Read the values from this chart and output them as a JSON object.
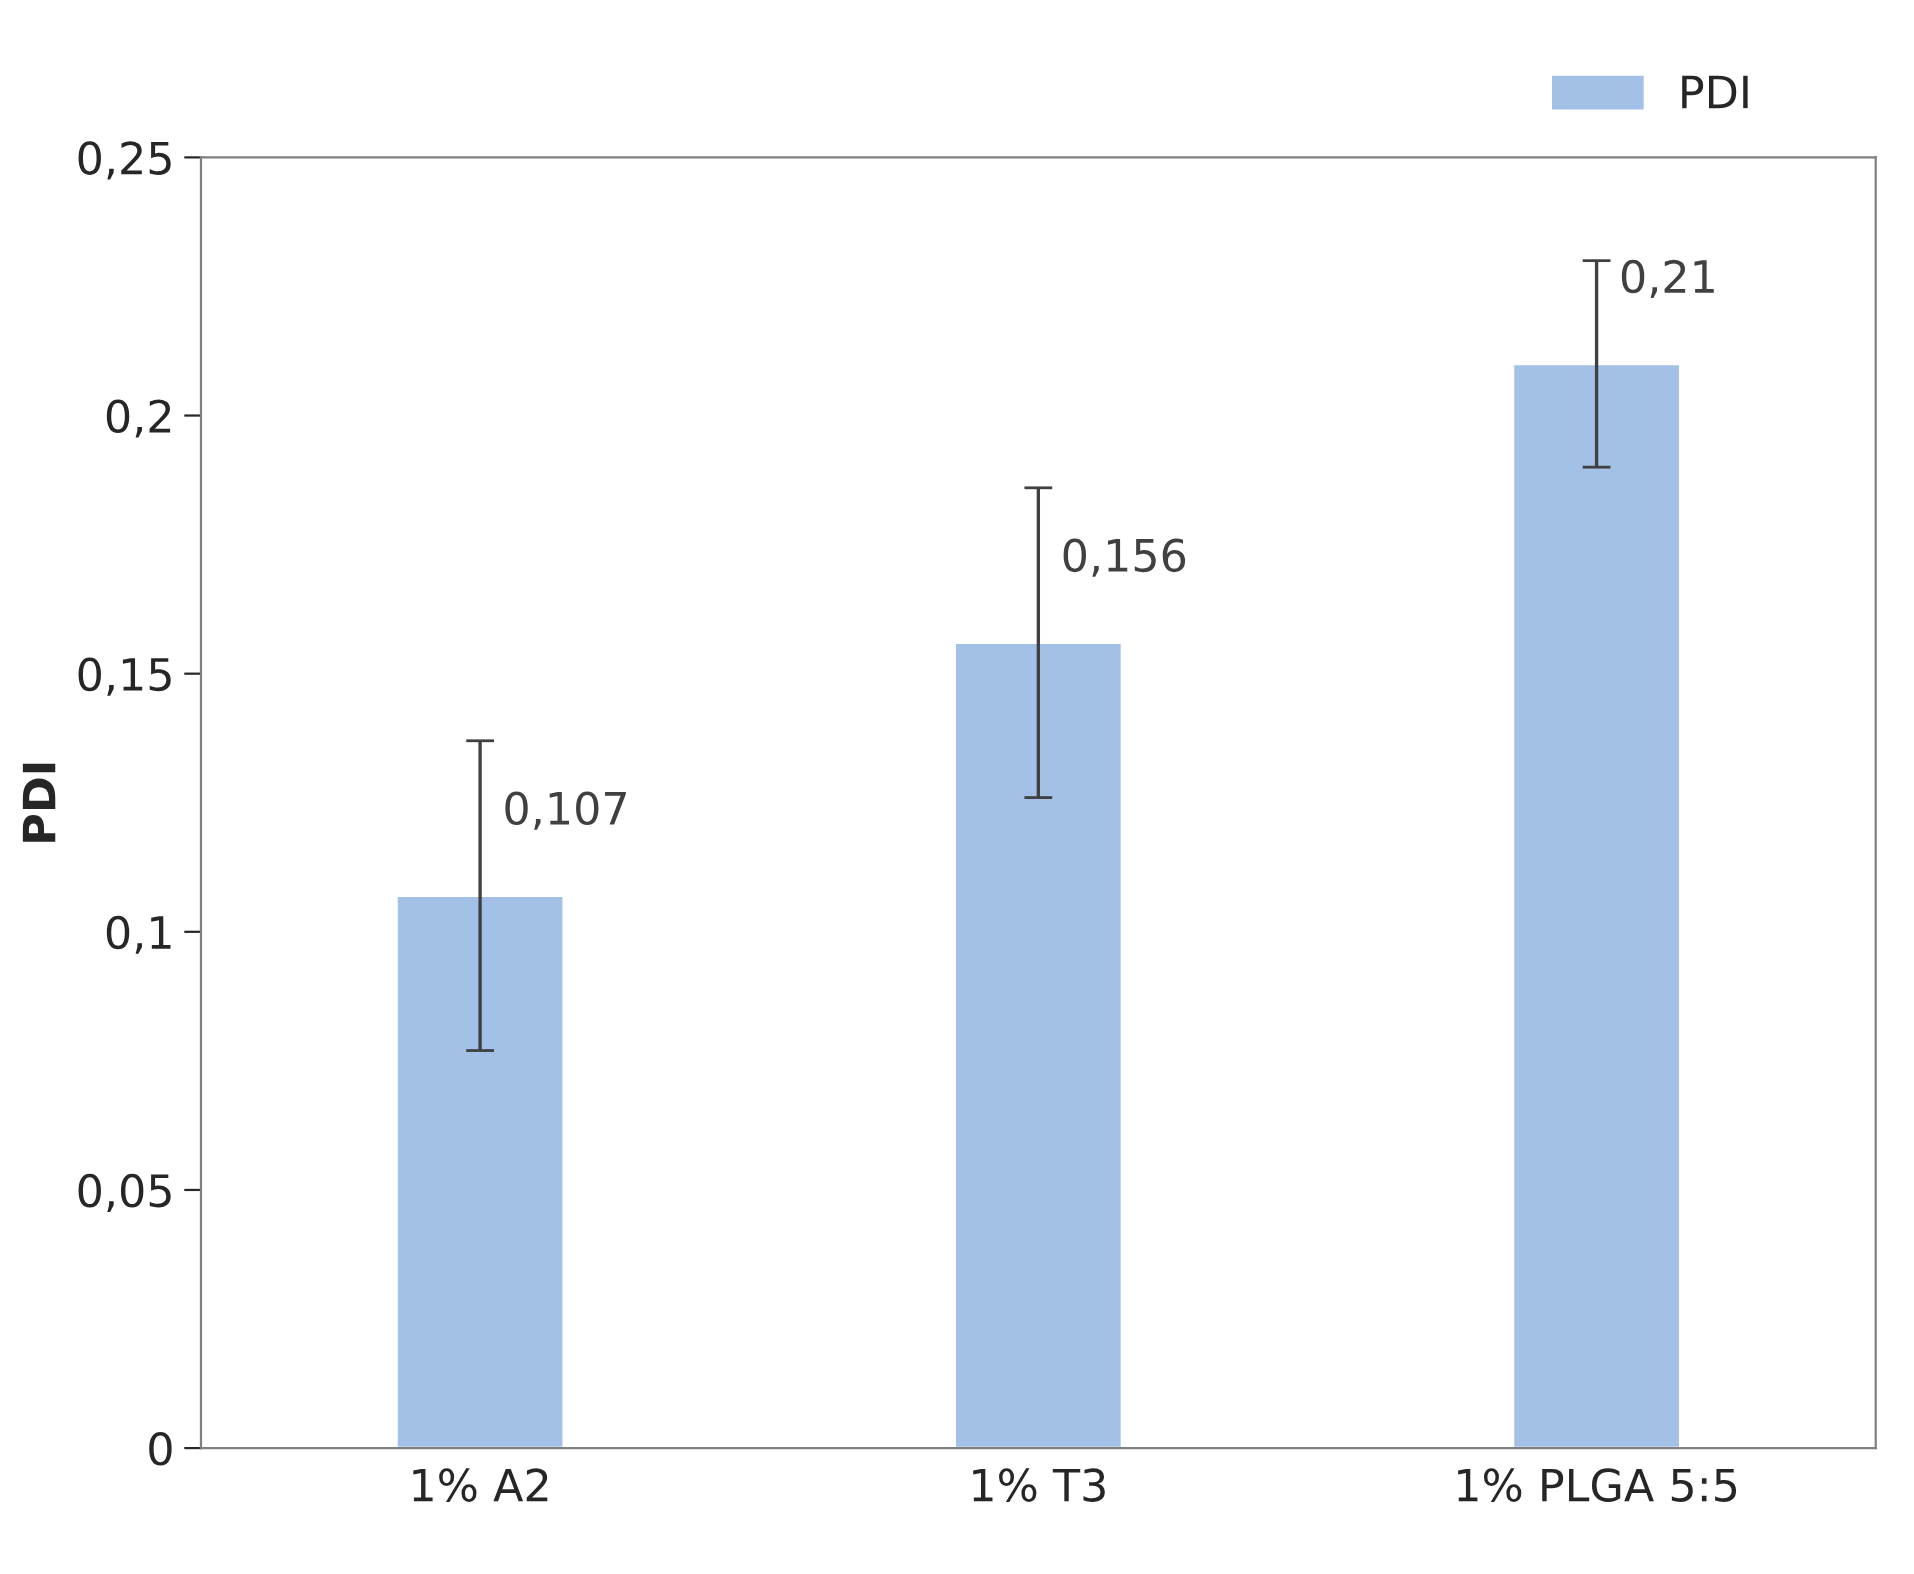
{
  "chart_data": {
    "type": "bar",
    "ylabel": "PDI",
    "categories": [
      "1% A2",
      "1% T3",
      "1% PLGA 5:5"
    ],
    "series": [
      {
        "name": "PDI",
        "color": "#a3c1e6",
        "values": [
          0.107,
          0.156,
          0.21
        ],
        "errors": [
          0.03,
          0.03,
          0.02
        ],
        "value_labels": [
          "0,107",
          "0,156",
          "0,21"
        ]
      }
    ],
    "ylim": [
      0,
      0.25
    ],
    "yticks": [
      {
        "value": 0,
        "label": "0"
      },
      {
        "value": 0.05,
        "label": "0,05"
      },
      {
        "value": 0.1,
        "label": "0,1"
      },
      {
        "value": 0.15,
        "label": "0,15"
      },
      {
        "value": 0.2,
        "label": "0,2"
      },
      {
        "value": 0.25,
        "label": "0,25"
      }
    ],
    "legend": "top right",
    "grid": false
  }
}
